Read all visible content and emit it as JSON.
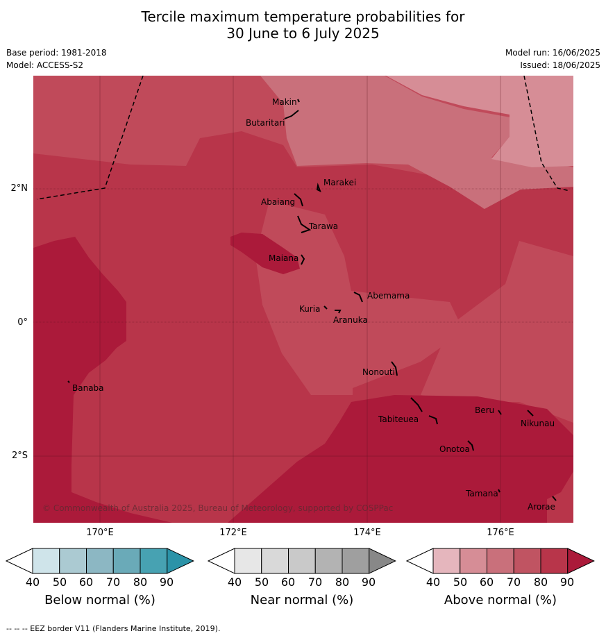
{
  "title": {
    "line1": "Tercile maximum temperature probabilities for",
    "line2": "30 June to 6 July 2025"
  },
  "meta": {
    "base_period": "Base period: 1981-2018",
    "model": "Model: ACCESS-S2",
    "model_run": "Model run: 16/06/2025",
    "issued": "Issued: 18/06/2025"
  },
  "map": {
    "lat_labels": [
      "2°N",
      "0°",
      "2°S"
    ],
    "lon_labels": [
      "170°E",
      "172°E",
      "174°E",
      "176°E"
    ],
    "places": [
      "Makin",
      "Butaritari",
      "Marakei",
      "Abaiang",
      "Tarawa",
      "Maiana",
      "Abemama",
      "Kuria",
      "Aranuka",
      "Nonouti",
      "Banaba",
      "Tabiteuea",
      "Beru",
      "Nikunau",
      "Onotoa",
      "Tamana",
      "Arorae"
    ],
    "copyright": "© Commonwealth of Australia 2025, Bureau of Meteorology, supported by COSPPac",
    "eez_border_style": "dashed black"
  },
  "colorbars": [
    {
      "name": "Below normal (%)",
      "ticks": [
        "40",
        "50",
        "60",
        "70",
        "80",
        "90"
      ],
      "colors": [
        "#ffffff",
        "#cfe4ea",
        "#abcad2",
        "#8cb7c3",
        "#6aaab8",
        "#47a2b2",
        "#2b93a8"
      ]
    },
    {
      "name": "Near normal (%)",
      "ticks": [
        "40",
        "50",
        "60",
        "70",
        "80",
        "90"
      ],
      "colors": [
        "#ffffff",
        "#e7e7e7",
        "#d9d9d9",
        "#c9c9c9",
        "#b3b3b3",
        "#9f9f9f",
        "#888888"
      ]
    },
    {
      "name": "Above normal (%)",
      "ticks": [
        "40",
        "50",
        "60",
        "70",
        "80",
        "90"
      ],
      "colors": [
        "#ffffff",
        "#e5b6bd",
        "#d68d96",
        "#c9707b",
        "#c05462",
        "#b8354a",
        "#ab1a3a"
      ]
    }
  ],
  "footer": "--  --  -- EEZ border V11 (Flanders Marine Institute, 2019)."
}
